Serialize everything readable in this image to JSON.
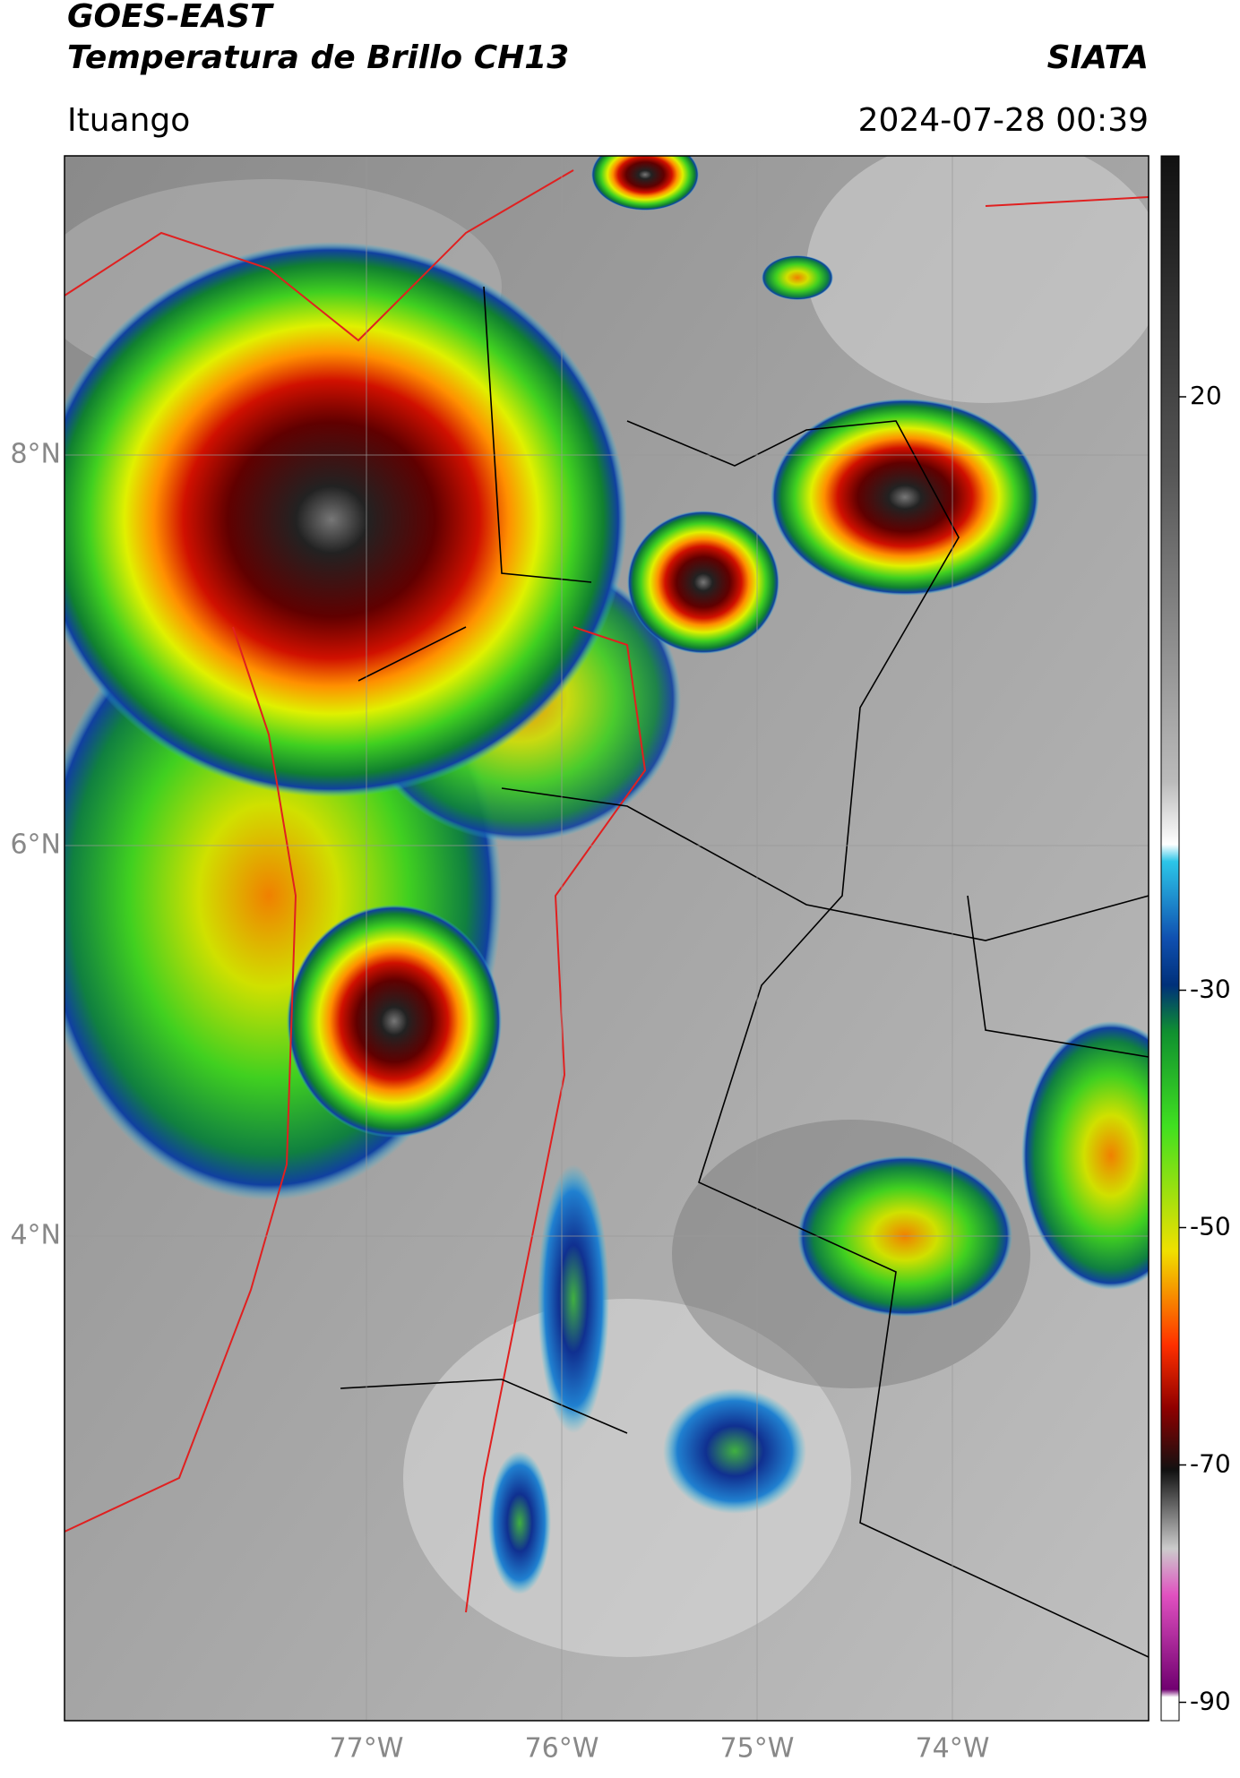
{
  "header": {
    "title": "GOES-EAST",
    "subtitle": "Temperatura de Brillo CH13",
    "source": "SIATA",
    "location": "Ituango",
    "datetime": "2024-07-28 00:39"
  },
  "map": {
    "lat_ticks": [
      {
        "value": 8,
        "label": "8°N"
      },
      {
        "value": 6,
        "label": "6°N"
      },
      {
        "value": 4,
        "label": "4°N"
      }
    ],
    "lon_ticks": [
      {
        "value": -77,
        "label": "77°W"
      },
      {
        "value": -76,
        "label": "76°W"
      },
      {
        "value": -75,
        "label": "75°W"
      },
      {
        "value": -74,
        "label": "74°W"
      }
    ]
  },
  "colorbar": {
    "ticks": [
      20,
      -30,
      -50,
      -70,
      -90
    ]
  }
}
